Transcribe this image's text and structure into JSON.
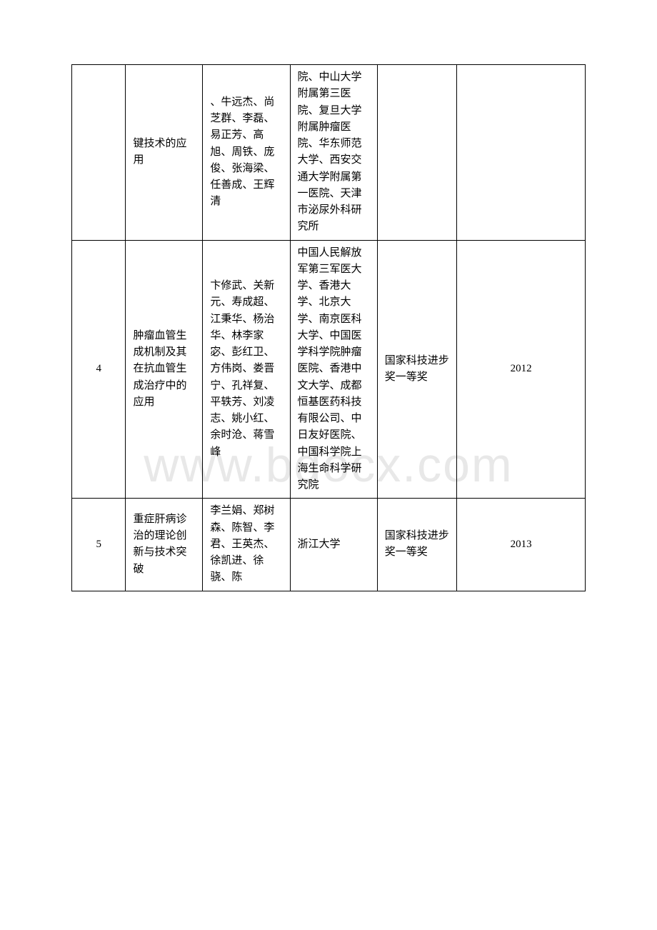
{
  "watermark": "www.bdocx.com",
  "table": {
    "rows": [
      {
        "num": "",
        "title": "键技术的应用",
        "people": "、牛远杰、尚芝群、李磊、易正芳、高旭、周铁、庞俊、张海梁、任善成、王辉清",
        "org": "院、中山大学附属第三医院、复旦大学附属肿瘤医院、华东师范大学、西安交通大学附属第一医院、天津市泌尿外科研究所",
        "award": "",
        "year": ""
      },
      {
        "num": "4",
        "title": "肿瘤血管生成机制及其在抗血管生成治疗中的应用",
        "people": "卞修武、关新元、寿成超、江秉华、杨治华、林李家宓、彭红卫、方伟岗、娄晋宁、孔祥复、平轶芳、刘凌志、姚小红、余时沧、蒋雪峰",
        "org": "中国人民解放军第三军医大学、香港大学、北京大学、南京医科大学、中国医学科学院肿瘤医院、香港中文大学、成都恒基医药科技有限公司、中日友好医院、中国科学院上海生命科学研究院",
        "award": "国家科技进步奖一等奖",
        "year": "2012"
      },
      {
        "num": "5",
        "title": "重症肝病诊治的理论创新与技术突破",
        "people": "李兰娟、郑树森、陈智、李君、王英杰、徐凯进、徐骁、陈",
        "org": "浙江大学",
        "award": "国家科技进步奖一等奖",
        "year": "2013"
      }
    ]
  }
}
